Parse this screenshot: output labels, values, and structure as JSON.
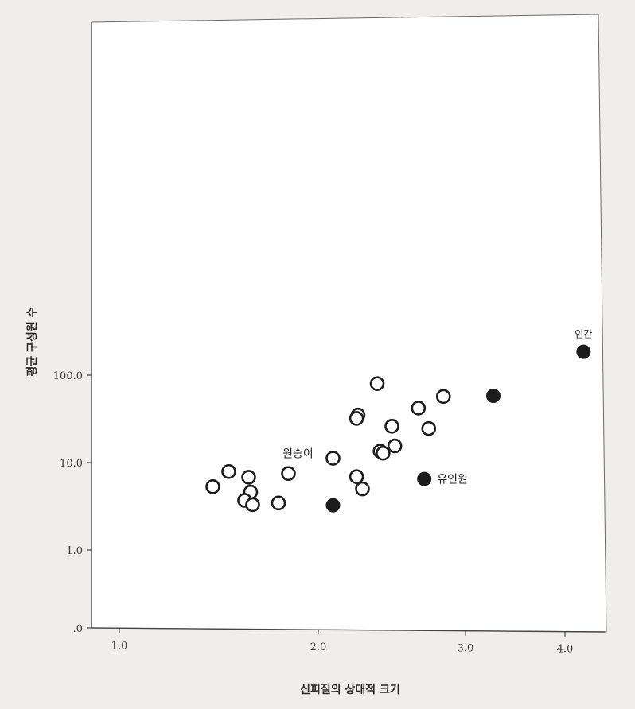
{
  "chart_data": {
    "type": "scatter",
    "xlabel": "신피질의 상대적 크기",
    "ylabel": "평균 구성원 수",
    "x_ticks": [
      "1.0",
      "2.0",
      "3.0",
      "4.0"
    ],
    "y_ticks": [
      ".0",
      "1.0",
      "10.0",
      "100.0"
    ],
    "y_scale": "log",
    "grid": false,
    "series": [
      {
        "marker": "open-circle",
        "points": [
          {
            "x": 2.4,
            "y": 80
          },
          {
            "x": 2.85,
            "y": 57
          },
          {
            "x": 2.68,
            "y": 42
          },
          {
            "x": 2.27,
            "y": 35
          },
          {
            "x": 2.26,
            "y": 32
          },
          {
            "x": 2.5,
            "y": 26
          },
          {
            "x": 2.75,
            "y": 24.5
          },
          {
            "x": 2.52,
            "y": 15.5
          },
          {
            "x": 2.42,
            "y": 13.5
          },
          {
            "x": 2.44,
            "y": 12.8
          },
          {
            "x": 2.1,
            "y": 11.2
          },
          {
            "x": 1.55,
            "y": 7.9
          },
          {
            "x": 1.85,
            "y": 7.5
          },
          {
            "x": 1.65,
            "y": 6.8
          },
          {
            "x": 2.26,
            "y": 6.9
          },
          {
            "x": 1.47,
            "y": 5.3
          },
          {
            "x": 1.66,
            "y": 4.6
          },
          {
            "x": 2.3,
            "y": 5.0
          },
          {
            "x": 1.63,
            "y": 3.7
          },
          {
            "x": 1.8,
            "y": 3.45
          },
          {
            "x": 1.67,
            "y": 3.3
          }
        ]
      },
      {
        "marker": "filled-circle",
        "points": [
          {
            "x": 4.2,
            "y": 185
          },
          {
            "x": 3.28,
            "y": 58
          },
          {
            "x": 2.72,
            "y": 6.5
          },
          {
            "x": 2.1,
            "y": 3.25
          }
        ]
      }
    ],
    "annotations": [
      {
        "text": "인간",
        "x": 4.2,
        "y": 185
      },
      {
        "text": "원숭이",
        "x": 1.85,
        "y": 7.5
      },
      {
        "text": "유인원",
        "x": 2.72,
        "y": 6.5
      }
    ]
  }
}
